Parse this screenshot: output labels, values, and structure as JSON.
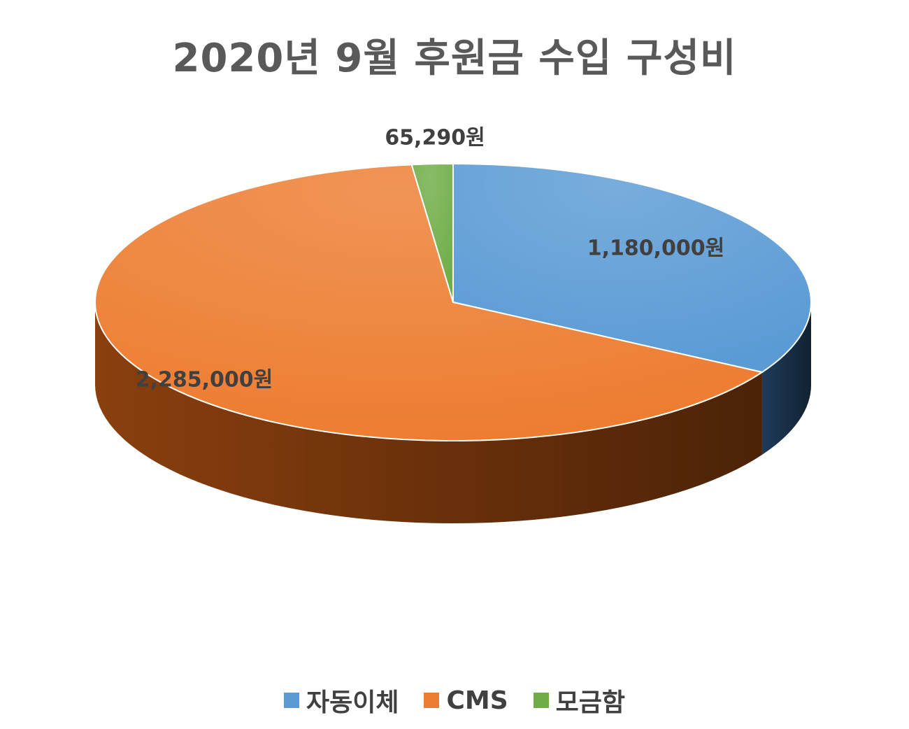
{
  "chart_data": {
    "type": "pie",
    "title": "2020년 9월 후원금 수입 구성비",
    "slices": [
      {
        "name": "자동이체",
        "value": 1180000,
        "label": "1,180,000원",
        "color": "#5B9BD5",
        "side_color": "#1F3C5A"
      },
      {
        "name": "CMS",
        "value": 2285000,
        "label": "2,285,000원",
        "color": "#ED7D31",
        "side_color": "#8A3F0E"
      },
      {
        "name": "모금함",
        "value": 65290,
        "label": "65,290원",
        "color": "#70AD47",
        "side_color": "#2E4D1C"
      }
    ],
    "legend_position": "bottom"
  }
}
